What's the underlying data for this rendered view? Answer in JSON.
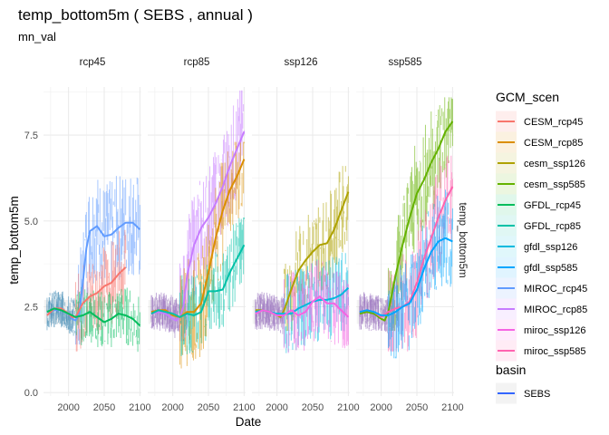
{
  "chart_data": {
    "type": "line",
    "title": "temp_bottom5m ( SEBS , annual )",
    "subtitle": "mn_val",
    "xlabel": "Date",
    "ylabel": "temp_bottom5m",
    "right_strip_label": "temp_bottom5m",
    "xlim": [
      1965,
      2102
    ],
    "ylim": [
      -0.1,
      8.9
    ],
    "x_ticks": [
      2000,
      2050,
      2100
    ],
    "x_tick_labels": [
      "2000",
      "2050",
      "2100"
    ],
    "y_ticks": [
      0.0,
      2.5,
      5.0,
      7.5
    ],
    "y_tick_labels": [
      "0.0",
      "2.5",
      "5.0",
      "7.5"
    ],
    "grid": true,
    "facets": [
      {
        "label": "rcp45",
        "series": [
          {
            "name": "MIROC_rcp45",
            "x": [
              1970,
              1980,
              1990,
              2000,
              2005,
              2010,
              2015,
              2020,
              2025,
              2030,
              2040,
              2050,
              2060,
              2070,
              2080,
              2090,
              2100
            ],
            "y": [
              2.35,
              2.4,
              2.4,
              2.3,
              2.15,
              2.1,
              2.3,
              3.2,
              4.2,
              4.7,
              4.85,
              4.55,
              4.6,
              4.8,
              4.95,
              4.95,
              4.75
            ],
            "raw_range": [
              1.4,
              7.5
            ]
          },
          {
            "name": "CESM_rcp45",
            "x": [
              1970,
              1980,
              1990,
              2000,
              2005,
              2010,
              2020,
              2030,
              2040,
              2050,
              2060,
              2070,
              2080
            ],
            "y": [
              2.25,
              2.45,
              2.45,
              2.3,
              2.2,
              2.2,
              2.6,
              2.8,
              2.9,
              3.1,
              3.2,
              3.45,
              3.65
            ],
            "raw_range": [
              1.2,
              5.6
            ]
          },
          {
            "name": "GFDL_rcp45",
            "x": [
              1970,
              1980,
              1990,
              2000,
              2010,
              2020,
              2030,
              2040,
              2050,
              2060,
              2070,
              2080,
              2090,
              2100
            ],
            "y": [
              2.35,
              2.45,
              2.4,
              2.3,
              2.2,
              2.25,
              2.35,
              2.2,
              2.05,
              2.15,
              2.3,
              2.25,
              2.15,
              1.95
            ],
            "raw_range": [
              0.7,
              3.8
            ]
          }
        ]
      },
      {
        "label": "rcp85",
        "series": [
          {
            "name": "MIROC_rcp85",
            "x": [
              1970,
              1980,
              1990,
              2000,
              2005,
              2010,
              2015,
              2020,
              2030,
              2040,
              2050,
              2060,
              2070,
              2080,
              2090,
              2100
            ],
            "y": [
              2.3,
              2.35,
              2.3,
              2.15,
              2.1,
              2.2,
              2.5,
              3.4,
              4.3,
              4.8,
              5.1,
              5.5,
              6.0,
              6.6,
              7.1,
              7.6
            ],
            "raw_range": [
              1.5,
              8.8
            ]
          },
          {
            "name": "CESM_rcp85",
            "x": [
              1970,
              1980,
              1990,
              2000,
              2010,
              2020,
              2030,
              2040,
              2050,
              2060,
              2070,
              2080,
              2090,
              2100
            ],
            "y": [
              2.35,
              2.4,
              2.4,
              2.25,
              2.2,
              2.35,
              2.35,
              2.6,
              3.5,
              4.5,
              5.3,
              5.9,
              6.3,
              6.8
            ],
            "raw_range": [
              0.6,
              7.3
            ]
          },
          {
            "name": "GFDL_rcp85",
            "x": [
              1970,
              1980,
              1990,
              2000,
              2010,
              2020,
              2030,
              2040,
              2050,
              2060,
              2070,
              2080,
              2090,
              2100
            ],
            "y": [
              2.3,
              2.4,
              2.35,
              2.3,
              2.2,
              2.3,
              2.25,
              2.35,
              2.95,
              2.95,
              3.0,
              3.5,
              3.9,
              4.3
            ],
            "raw_range": [
              0.8,
              5.1
            ]
          }
        ]
      },
      {
        "label": "ssp126",
        "series": [
          {
            "name": "cesm_ssp126",
            "x": [
              1970,
              1980,
              1990,
              2000,
              2005,
              2010,
              2020,
              2030,
              2040,
              2050,
              2060,
              2070,
              2080,
              2090,
              2100
            ],
            "y": [
              2.4,
              2.4,
              2.35,
              2.25,
              2.2,
              2.4,
              3.0,
              3.55,
              3.85,
              4.1,
              4.3,
              4.35,
              4.75,
              5.3,
              5.85
            ],
            "raw_range": [
              1.8,
              6.6
            ]
          },
          {
            "name": "gfdl_ssp126",
            "x": [
              1970,
              1980,
              1990,
              2000,
              2010,
              2020,
              2030,
              2040,
              2050,
              2060,
              2070,
              2080,
              2090,
              2100
            ],
            "y": [
              2.35,
              2.4,
              2.35,
              2.3,
              2.3,
              2.3,
              2.45,
              2.55,
              2.65,
              2.7,
              2.7,
              2.75,
              2.85,
              3.05
            ],
            "raw_range": [
              0.3,
              4.6
            ]
          },
          {
            "name": "miroc_ssp126",
            "x": [
              1970,
              1980,
              1990,
              2000,
              2010,
              2020,
              2030,
              2040,
              2050,
              2060,
              2070,
              2080,
              2090,
              2100
            ],
            "y": [
              2.3,
              2.4,
              2.35,
              2.25,
              2.25,
              2.4,
              2.25,
              2.35,
              2.65,
              2.8,
              2.6,
              2.6,
              2.4,
              2.2
            ],
            "raw_range": [
              0.5,
              4.9
            ]
          }
        ]
      },
      {
        "label": "ssp585",
        "series": [
          {
            "name": "cesm_ssp585",
            "x": [
              1970,
              1980,
              1990,
              2000,
              2005,
              2010,
              2020,
              2030,
              2040,
              2050,
              2060,
              2070,
              2080,
              2090,
              2100
            ],
            "y": [
              2.3,
              2.35,
              2.3,
              2.15,
              2.1,
              2.35,
              3.4,
              4.3,
              5.1,
              5.8,
              6.2,
              6.7,
              7.1,
              7.6,
              7.9
            ],
            "raw_range": [
              1.8,
              8.6
            ]
          },
          {
            "name": "miroc_ssp585",
            "x": [
              1970,
              1980,
              1990,
              2000,
              2010,
              2020,
              2030,
              2040,
              2050,
              2060,
              2070,
              2080,
              2090,
              2100
            ],
            "y": [
              2.35,
              2.4,
              2.35,
              2.2,
              2.35,
              2.45,
              2.5,
              2.65,
              3.2,
              3.9,
              4.5,
              5.1,
              5.6,
              6.0
            ],
            "raw_range": [
              1.2,
              6.9
            ]
          },
          {
            "name": "gfdl_ssp585",
            "x": [
              1970,
              1980,
              1990,
              2000,
              2010,
              2020,
              2030,
              2040,
              2050,
              2060,
              2070,
              2080,
              2090,
              2100
            ],
            "y": [
              2.35,
              2.4,
              2.35,
              2.25,
              2.25,
              2.35,
              2.5,
              2.6,
              3.0,
              3.6,
              4.1,
              4.4,
              4.5,
              4.4
            ],
            "raw_range": [
              1.0,
              6.1
            ]
          }
        ]
      }
    ],
    "legend": {
      "position": "right",
      "groups": [
        {
          "title": "GCM_scen",
          "entries": [
            {
              "label": "CESM_rcp45",
              "color": "#F8766D"
            },
            {
              "label": "CESM_rcp85",
              "color": "#DB8E00"
            },
            {
              "label": "cesm_ssp126",
              "color": "#AEA200"
            },
            {
              "label": "cesm_ssp585",
              "color": "#64B200"
            },
            {
              "label": "GFDL_rcp45",
              "color": "#00BD5C"
            },
            {
              "label": "GFDL_rcp85",
              "color": "#00C1A7"
            },
            {
              "label": "gfdl_ssp126",
              "color": "#00BADE"
            },
            {
              "label": "gfdl_ssp585",
              "color": "#00A6FF"
            },
            {
              "label": "MIROC_rcp45",
              "color": "#619CFF"
            },
            {
              "label": "MIROC_rcp85",
              "color": "#C77CFF"
            },
            {
              "label": "miroc_ssp126",
              "color": "#F564E3"
            },
            {
              "label": "miroc_ssp585",
              "color": "#FF64B0"
            }
          ]
        },
        {
          "title": "basin",
          "entries": [
            {
              "label": "SEBS",
              "color": "#3366FF"
            }
          ]
        }
      ]
    }
  }
}
